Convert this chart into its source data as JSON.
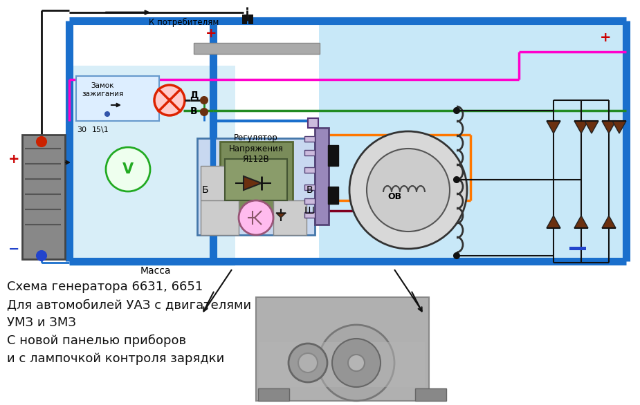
{
  "bg_color": "#ffffff",
  "diagram_bg": "#c8e8f8",
  "left_panel_bg": "#d8eef8",
  "title_lines": [
    "Схема генератора 6631, 6651",
    "Для автомобилей УАЗ с двигателями",
    "УМЗ и ЗМЗ",
    "С новой панелью приборов",
    "и с лампочкой контроля зарядки"
  ],
  "wire_blue": "#1a6fcc",
  "wire_green": "#228b22",
  "wire_pink": "#ff00cc",
  "wire_orange": "#ff7700",
  "wire_dark_red": "#800020",
  "wire_dark": "#111111",
  "wire_gray": "#999999",
  "diode_color": "#6b3010",
  "regulator_bg": "#7a8c5a",
  "battery_gray": "#888888"
}
